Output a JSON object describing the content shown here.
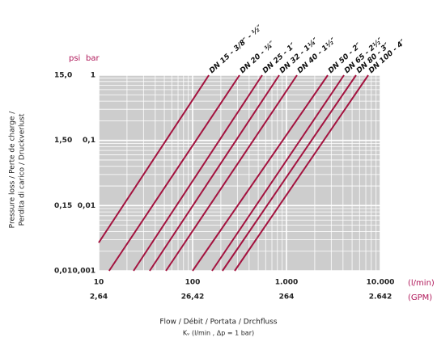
{
  "chart_data": {
    "type": "line",
    "x_log": true,
    "y_log": true,
    "grid": true,
    "plot_background": "#cdcdcd",
    "y_unit": "bar",
    "y2_unit": "psi",
    "x_unit": "(l/min)",
    "x2_unit": "(GPM)",
    "y_label": [
      "Pressure loss / Perte de charge /",
      "Perdita di carico / Druckverlust"
    ],
    "x_label": "Flow / Débit / Portata / Drchfluss",
    "x_sublabel": "Kᵥ (l/min , Δp = 1 bar)",
    "xlim": [
      10,
      10000
    ],
    "ylim": [
      0.001,
      1
    ],
    "xticks": [
      10,
      100,
      {
        "value": 1000,
        "label": "1.000"
      },
      {
        "value": 10000,
        "label": "10.000"
      }
    ],
    "yticks": [
      {
        "value": 0.001,
        "label": "0,001"
      },
      {
        "value": 0.01,
        "label": "0,01"
      },
      {
        "value": 0.1,
        "label": "0,1"
      },
      1
    ],
    "x2_tick_labels": [
      "2,64",
      "26,42",
      "264",
      "2.642"
    ],
    "y2_tick_labels": [
      "0,01",
      "0,15",
      "1,50",
      "15,0"
    ],
    "series": [
      {
        "name": "DN 15 - 3/8″ - ½″",
        "color": "#a3133f",
        "x": [
          10,
          149
        ],
        "values": [
          0.0027,
          1
        ]
      },
      {
        "name": "DN 20 - ¾″",
        "color": "#a3133f",
        "x": [
          12.9,
          316
        ],
        "values": [
          0.001,
          1
        ]
      },
      {
        "name": "DN 25 - 1″",
        "color": "#a3133f",
        "x": [
          23.5,
          551
        ],
        "values": [
          0.001,
          1
        ]
      },
      {
        "name": "DN 32 - 1¼″",
        "color": "#a3133f",
        "x": [
          34.9,
          836
        ],
        "values": [
          0.001,
          1
        ]
      },
      {
        "name": "DN 40 - 1½″",
        "color": "#a3133f",
        "x": [
          52,
          1294
        ],
        "values": [
          0.001,
          1
        ]
      },
      {
        "name": "DN 50 - 2″",
        "color": "#a3133f",
        "x": [
          100,
          2754
        ],
        "values": [
          0.001,
          1
        ]
      },
      {
        "name": "DN 65 - 2½″",
        "color": "#a3133f",
        "x": [
          161,
          4096
        ],
        "values": [
          0.001,
          1
        ]
      },
      {
        "name": "DN 80 - 3″",
        "color": "#a3133f",
        "x": [
          208,
          5510
        ],
        "values": [
          0.001,
          1
        ]
      },
      {
        "name": "DN 100 - 4″",
        "color": "#a3133f",
        "x": [
          281,
          7430
        ],
        "values": [
          0.001,
          1
        ]
      }
    ]
  }
}
